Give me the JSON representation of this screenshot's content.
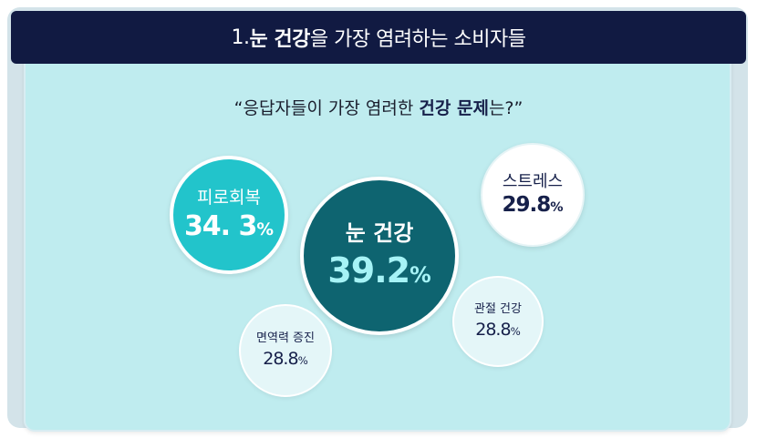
{
  "header": {
    "prefix": "1. ",
    "bold": "눈 건강",
    "suffix": "을 가장 염려하는 소비자들"
  },
  "question": {
    "open": "“응답자들이 가장 염려한 ",
    "bold": "건강 문제",
    "close": "는?”"
  },
  "colors": {
    "header_bg": "#111a42",
    "panel_bg": "#bfecef",
    "dark_teal": "#0e6470",
    "mid_teal": "#22c4cb",
    "white_bubble": "#ffffff",
    "pale_bubble": "#e4f6f8",
    "text_dark": "#16204a",
    "value_cyan": "#a6f3f6"
  },
  "chart_data": {
    "type": "bubble",
    "unit": "%",
    "items": [
      {
        "label": "눈 건강",
        "value": 39.2,
        "display": "39.2"
      },
      {
        "label": "피로회복",
        "value": 34.3,
        "display": "34. 3"
      },
      {
        "label": "스트레스",
        "value": 29.8,
        "display": "29.8"
      },
      {
        "label": "관절 건강",
        "value": 28.8,
        "display": "28.8"
      },
      {
        "label": "면역력 증진",
        "value": 28.8,
        "display": "28.8"
      }
    ]
  }
}
